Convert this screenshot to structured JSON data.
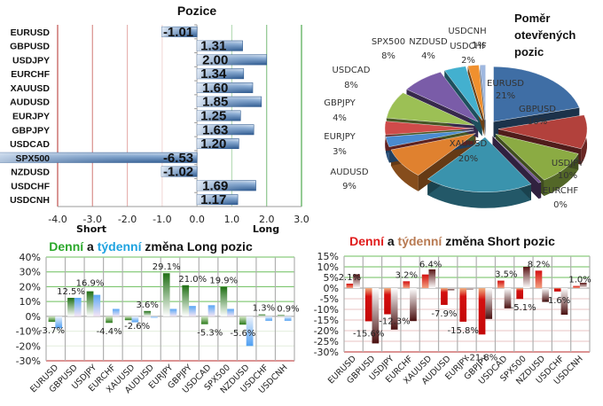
{
  "chart_data": [
    {
      "id": "positions",
      "type": "bar",
      "orientation": "horizontal",
      "title": "Pozice",
      "categories": [
        "EURUSD",
        "GBPUSD",
        "USDJPY",
        "EURCHF",
        "XAUUSD",
        "AUDUSD",
        "EURJPY",
        "GBPJPY",
        "USDCAD",
        "SPX500",
        "NZDUSD",
        "USDCHF",
        "USDCNH"
      ],
      "values": [
        -1.01,
        1.31,
        2.0,
        1.34,
        1.6,
        1.85,
        1.25,
        1.63,
        1.2,
        -6.53,
        -1.02,
        1.69,
        1.17
      ],
      "value_labels": [
        "-1.01",
        "1.31",
        "2.00",
        "1.34",
        "1.60",
        "1.85",
        "1.25",
        "1.63",
        "1.20",
        "-6.53",
        "-1.02",
        "1.69",
        "1.17"
      ],
      "xlim": [
        -4.0,
        3.0
      ],
      "xticks": [
        "-4.0",
        "-3.0",
        "-2.0",
        "-1.0",
        "0.0",
        "1.0",
        "2.0",
        "3.0"
      ],
      "xtick_values": [
        -4,
        -3,
        -2,
        -1,
        0,
        1,
        2,
        3
      ],
      "short_label": "Short",
      "long_label": "Long",
      "grid": true,
      "colors": {
        "bar": "#4f7bb0",
        "short_grid": "#c0504d",
        "long_grid": "#4ea84e"
      }
    },
    {
      "id": "open-ratio",
      "type": "pie",
      "title": "Poměr otevřených pozic",
      "title_lines": [
        "Poměr",
        "otevřených",
        "pozic"
      ],
      "slices": [
        {
          "label": "EURUSD",
          "value": 21,
          "text": "21%",
          "color": "#3f6ea5"
        },
        {
          "label": "GBPUSD",
          "value": 10,
          "text": "10%",
          "color": "#b2413c"
        },
        {
          "label": "USDJPY",
          "value": 10,
          "text": "10%",
          "color": "#8bab43"
        },
        {
          "label": "EURCHF",
          "value": 0.5,
          "text": "0%",
          "color": "#6a4a8c"
        },
        {
          "label": "XAUUSD",
          "value": 20,
          "text": "20%",
          "color": "#3a93ad"
        },
        {
          "label": "AUDUSD",
          "value": 9,
          "text": "9%",
          "color": "#e0812f"
        },
        {
          "label": "EURJPY",
          "value": 3,
          "text": "3%",
          "color": "#4a8bd0"
        },
        {
          "label": "GBPJPY",
          "value": 4,
          "text": "4%",
          "color": "#cf4b4a"
        },
        {
          "label": "USDCAD",
          "value": 8,
          "text": "8%",
          "color": "#9cc055"
        },
        {
          "label": "SPX500",
          "value": 8,
          "text": "8%",
          "color": "#7a5ca8"
        },
        {
          "label": "NZDUSD",
          "value": 4,
          "text": "4%",
          "color": "#43b0cf"
        },
        {
          "label": "USDCHF",
          "value": 2,
          "text": "2%",
          "color": "#f0902e"
        },
        {
          "label": "USDCNH",
          "value": 1,
          "text": "1%",
          "color": "#9fb8e0"
        }
      ]
    },
    {
      "id": "long-change",
      "type": "bar",
      "title": "Denní a týdenní změna Long pozic",
      "title_parts": [
        {
          "text": "Denní",
          "color": "#2aa82a"
        },
        {
          "text": " a ",
          "color": "#111111"
        },
        {
          "text": "týdenní",
          "color": "#1fa3e0"
        },
        {
          "text": " změna Long pozic",
          "color": "#111111"
        }
      ],
      "categories": [
        "EURUSD",
        "GBPUSD",
        "USDJPY",
        "EURCHF",
        "XAUUSD",
        "AUDUSD",
        "EURJPY",
        "GBPJPY",
        "USDCAD",
        "SPX500",
        "NZDUSD",
        "USDCHF",
        "USDCNH"
      ],
      "series": [
        {
          "name": "Denní",
          "color": "#2e7d1f",
          "values": [
            -3.7,
            12.5,
            16.9,
            -4.4,
            -2.6,
            3.6,
            29.1,
            21.0,
            -5.3,
            19.9,
            -5.6,
            1.3,
            0.9
          ]
        },
        {
          "name": "Týdenní",
          "color": "#5aa7f5",
          "values": [
            -8.0,
            12.5,
            14.5,
            5.0,
            -4.0,
            -0.5,
            5.0,
            7.0,
            7.5,
            5.0,
            -20.0,
            -3.0,
            -3.0
          ]
        }
      ],
      "data_labels": [
        "-3.7%",
        "12.5%",
        "16.9%",
        "-4.4%",
        "-2.6%",
        "3.6%",
        "29.1%",
        "21.0%",
        "-5.3%",
        "19.9%",
        "-5.6%",
        "1.3%",
        "0.9%"
      ],
      "ylim": [
        -30,
        40
      ],
      "yticks": [
        "40%",
        "30%",
        "20%",
        "10%",
        "0%",
        "-10%",
        "-20%",
        "-30%"
      ],
      "ytick_values": [
        40,
        30,
        20,
        10,
        0,
        -10,
        -20,
        -30
      ],
      "grid": true
    },
    {
      "id": "short-change",
      "type": "bar",
      "title": "Denní a týdenní změna Short pozic",
      "title_parts": [
        {
          "text": "Denní",
          "color": "#e01b1b"
        },
        {
          "text": " a ",
          "color": "#111111"
        },
        {
          "text": "týdenní",
          "color": "#b87a52"
        },
        {
          "text": " změna Short pozic",
          "color": "#111111"
        }
      ],
      "categories": [
        "EURUSD",
        "GBPUSD",
        "USDJPY",
        "EURCHF",
        "XAUUSD",
        "AUDUSD",
        "EURJPY",
        "GBPJPY",
        "USDCAD",
        "SPX500",
        "NZDUSD",
        "USDCHF",
        "USDCNH"
      ],
      "series": [
        {
          "name": "Denní",
          "color": "#d41010",
          "values": [
            2.1,
            -15.6,
            -12.3,
            3.2,
            6.4,
            -7.9,
            -15.8,
            -21.8,
            3.5,
            -5.1,
            8.2,
            -1.6,
            1.0
          ]
        },
        {
          "name": "Týdenní",
          "color": "#5a1414",
          "values": [
            6.5,
            -26.0,
            -19.5,
            -15.5,
            8.8,
            -1.0,
            -0.5,
            -14.5,
            -9.5,
            10.0,
            -6.5,
            -12.5,
            2.5
          ]
        }
      ],
      "data_labels": [
        "2.1%",
        "-15.6%",
        "-12.3%",
        "3.2%",
        "6.4%",
        "-7.9%",
        "-15.8%",
        "-21.8%",
        "3.5%",
        "-5.1%",
        "8.2%",
        "-1.6%",
        "1.0%"
      ],
      "ylim": [
        -30,
        15
      ],
      "yticks": [
        "15%",
        "10%",
        "5%",
        "0%",
        "-5%",
        "-10%",
        "-15%",
        "-20%",
        "-25%",
        "-30%"
      ],
      "ytick_values": [
        15,
        10,
        5,
        0,
        -5,
        -10,
        -15,
        -20,
        -25,
        -30
      ],
      "grid": true
    }
  ]
}
